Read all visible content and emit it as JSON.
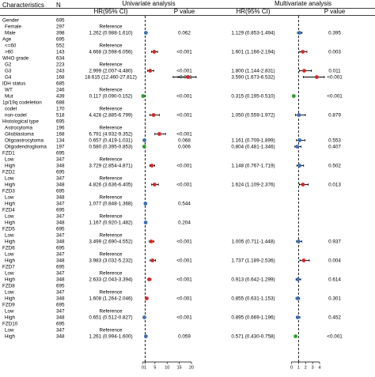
{
  "chart_data": [
    {
      "type": "forest",
      "title": "Univariate analysis",
      "xlabel": "",
      "xlim": [
        0,
        20
      ],
      "reference_line": 1,
      "ticks": [
        "0",
        "1",
        "5",
        "10",
        "15",
        "20"
      ],
      "tick_values": [
        0,
        1,
        5,
        10,
        15,
        20
      ],
      "points": [
        {
          "row": 2,
          "hr": 1.262,
          "low": 0.988,
          "high": 1.61,
          "color": "#3c6fb4"
        },
        {
          "row": 5,
          "hr": 4.668,
          "low": 3.598,
          "high": 6.056,
          "color": "#d62728"
        },
        {
          "row": 8,
          "hr": 2.999,
          "low": 2.007,
          "high": 4.48,
          "color": "#d62728"
        },
        {
          "row": 9,
          "hr": 18.615,
          "low": 12.46,
          "high": 27.812,
          "color": "#d62728"
        },
        {
          "row": 12,
          "hr": 0.117,
          "low": 0.09,
          "high": 0.152,
          "color": "#2ca02c"
        },
        {
          "row": 15,
          "hr": 4.428,
          "low": 2.885,
          "high": 6.799,
          "color": "#d62728"
        },
        {
          "row": 18,
          "hr": 6.791,
          "low": 4.932,
          "high": 9.352,
          "color": "#d62728"
        },
        {
          "row": 19,
          "hr": 0.657,
          "low": 0.419,
          "high": 1.031,
          "color": "#3c6fb4"
        },
        {
          "row": 20,
          "hr": 0.58,
          "low": 0.395,
          "high": 0.853,
          "color": "#2ca02c"
        },
        {
          "row": 23,
          "hr": 3.729,
          "low": 2.854,
          "high": 4.871,
          "color": "#d62728"
        },
        {
          "row": 26,
          "hr": 4.826,
          "low": 3.636,
          "high": 6.405,
          "color": "#d62728"
        },
        {
          "row": 29,
          "hr": 1.077,
          "low": 0.848,
          "high": 1.368,
          "color": "#3c6fb4"
        },
        {
          "row": 32,
          "hr": 1.167,
          "low": 0.92,
          "high": 1.482,
          "color": "#3c6fb4"
        },
        {
          "row": 35,
          "hr": 3.499,
          "low": 2.69,
          "high": 4.552,
          "color": "#d62728"
        },
        {
          "row": 38,
          "hr": 3.983,
          "low": 3.032,
          "high": 5.232,
          "color": "#d62728"
        },
        {
          "row": 41,
          "hr": 2.633,
          "low": 2.043,
          "high": 3.394,
          "color": "#d62728"
        },
        {
          "row": 44,
          "hr": 1.608,
          "low": 1.264,
          "high": 2.046,
          "color": "#d62728"
        },
        {
          "row": 47,
          "hr": 0.651,
          "low": 0.512,
          "high": 0.827,
          "color": "#3c6fb4"
        },
        {
          "row": 50,
          "hr": 1.261,
          "low": 0.994,
          "high": 1.6,
          "color": "#3c6fb4"
        }
      ]
    },
    {
      "type": "forest",
      "title": "Multivariate analysis",
      "xlabel": "",
      "xlim": [
        0,
        4
      ],
      "reference_line": 1,
      "ticks": [
        "0",
        "1",
        "2",
        "3",
        "4"
      ],
      "tick_values": [
        0,
        1,
        2,
        3,
        4
      ],
      "points": [
        {
          "row": 2,
          "hr": 1.129,
          "low": 0.853,
          "high": 1.494,
          "color": "#3c6fb4"
        },
        {
          "row": 5,
          "hr": 1.601,
          "low": 1.166,
          "high": 2.194,
          "color": "#d62728"
        },
        {
          "row": 8,
          "hr": 1.8,
          "low": 1.144,
          "high": 2.831,
          "color": "#d62728"
        },
        {
          "row": 9,
          "hr": 3.59,
          "low": 1.673,
          "high": 6.532,
          "color": "#d62728"
        },
        {
          "row": 12,
          "hr": 0.315,
          "low": 0.195,
          "high": 0.51,
          "color": "#2ca02c"
        },
        {
          "row": 15,
          "hr": 1.05,
          "low": 0.559,
          "high": 1.972,
          "color": "#3c6fb4"
        },
        {
          "row": 19,
          "hr": 1.161,
          "low": 0.709,
          "high": 1.899,
          "color": "#3c6fb4"
        },
        {
          "row": 20,
          "hr": 0.804,
          "low": 0.481,
          "high": 1.346,
          "color": "#3c6fb4"
        },
        {
          "row": 23,
          "hr": 1.148,
          "low": 0.767,
          "high": 1.719,
          "color": "#3c6fb4"
        },
        {
          "row": 26,
          "hr": 1.624,
          "low": 1.109,
          "high": 2.376,
          "color": "#d62728"
        },
        {
          "row": 35,
          "hr": 1.005,
          "low": 0.711,
          "high": 1.448,
          "color": "#3c6fb4"
        },
        {
          "row": 38,
          "hr": 1.737,
          "low": 1.189,
          "high": 2.536,
          "color": "#d62728"
        },
        {
          "row": 41,
          "hr": 0.913,
          "low": 0.642,
          "high": 1.299,
          "color": "#3c6fb4"
        },
        {
          "row": 44,
          "hr": 0.855,
          "low": 0.631,
          "high": 1.153,
          "color": "#3c6fb4"
        },
        {
          "row": 47,
          "hr": 0.895,
          "low": 0.669,
          "high": 1.196,
          "color": "#3c6fb4"
        },
        {
          "row": 50,
          "hr": 0.571,
          "low": 0.43,
          "high": 0.758,
          "color": "#2ca02c"
        }
      ]
    }
  ],
  "headers": {
    "characteristics": "Characteristics",
    "n": "N",
    "uni_title": "Univariate analysis",
    "multi_title": "Multivariate analysis",
    "uni_hr": "HR(95% CI)",
    "uni_p": "P value",
    "multi_hr": "HR(95% CI)",
    "multi_p": "P value"
  },
  "rows": [
    {
      "label": "Gender",
      "n": "695",
      "indent": false,
      "uhr": "",
      "up": "",
      "mhr": "",
      "mp": ""
    },
    {
      "label": "Female",
      "n": "297",
      "indent": true,
      "uhr": "Reference",
      "up": "",
      "mhr": "",
      "mp": ""
    },
    {
      "label": "Male",
      "n": "398",
      "indent": true,
      "uhr": "1.262 (0.988-1.610)",
      "up": "0.062",
      "mhr": "1.129 (0.853-1.494)",
      "mp": "0.395"
    },
    {
      "label": "Age",
      "n": "695",
      "indent": false,
      "uhr": "",
      "up": "",
      "mhr": "",
      "mp": ""
    },
    {
      "label": "<=60",
      "n": "552",
      "indent": true,
      "uhr": "Reference",
      "up": "",
      "mhr": "",
      "mp": ""
    },
    {
      "label": ">60",
      "n": "143",
      "indent": true,
      "uhr": "4.668 (3.598-6.056)",
      "up": "<0.001",
      "mhr": "1.601 (1.166-2.194)",
      "mp": "0.003"
    },
    {
      "label": "WHO grade",
      "n": "634",
      "indent": false,
      "uhr": "",
      "up": "",
      "mhr": "",
      "mp": ""
    },
    {
      "label": "G2",
      "n": "223",
      "indent": true,
      "uhr": "Reference",
      "up": "",
      "mhr": "",
      "mp": ""
    },
    {
      "label": "G3",
      "n": "243",
      "indent": true,
      "uhr": "2.999 (2.007-4.480)",
      "up": "<0.001",
      "mhr": "1.800 (1.144-2.831)",
      "mp": "0.011"
    },
    {
      "label": "G4",
      "n": "168",
      "indent": true,
      "uhr": "18.615 (12.460-27.812)",
      "up": "<0.001",
      "mhr": "3.590 (1.673-6.532)",
      "mp": "<0.001"
    },
    {
      "label": "IDH status",
      "n": "685",
      "indent": false,
      "uhr": "",
      "up": "",
      "mhr": "",
      "mp": ""
    },
    {
      "label": "WT",
      "n": "246",
      "indent": true,
      "uhr": "Reference",
      "up": "",
      "mhr": "",
      "mp": ""
    },
    {
      "label": "Mut",
      "n": "439",
      "indent": true,
      "uhr": "0.117 (0.090-0.152)",
      "up": "<0.001",
      "mhr": "0.315 (0.195-0.510)",
      "mp": "<0.001"
    },
    {
      "label": "1p/19q codeletion",
      "n": "688",
      "indent": false,
      "uhr": "",
      "up": "",
      "mhr": "",
      "mp": ""
    },
    {
      "label": "codel",
      "n": "170",
      "indent": true,
      "uhr": "Reference",
      "up": "",
      "mhr": "",
      "mp": ""
    },
    {
      "label": "non-codel",
      "n": "518",
      "indent": true,
      "uhr": "4.428 (2.885-6.799)",
      "up": "<0.001",
      "mhr": "1.050 (0.559-1.972)",
      "mp": "0.879"
    },
    {
      "label": "Histological type",
      "n": "695",
      "indent": false,
      "uhr": "",
      "up": "",
      "mhr": "",
      "mp": ""
    },
    {
      "label": "Astrocytoma",
      "n": "196",
      "indent": true,
      "uhr": "Reference",
      "up": "",
      "mhr": "",
      "mp": ""
    },
    {
      "label": "Glioblastoma",
      "n": "168",
      "indent": true,
      "uhr": "6.791 (4.932-9.352)",
      "up": "<0.001",
      "mhr": "",
      "mp": ""
    },
    {
      "label": "Oligoastrocytoma",
      "n": "134",
      "indent": true,
      "uhr": "0.657 (0.419-1.031)",
      "up": "0.068",
      "mhr": "1.161 (0.709-1.899)",
      "mp": "0.553"
    },
    {
      "label": "Oligodendroglioma",
      "n": "197",
      "indent": true,
      "uhr": "0.580 (0.395-0.853)",
      "up": "0.006",
      "mhr": "0.804 (0.481-1.346)",
      "mp": "0.407"
    },
    {
      "label": "FZD1",
      "n": "695",
      "indent": false,
      "uhr": "",
      "up": "",
      "mhr": "",
      "mp": ""
    },
    {
      "label": "Low",
      "n": "347",
      "indent": true,
      "uhr": "Reference",
      "up": "",
      "mhr": "",
      "mp": ""
    },
    {
      "label": "High",
      "n": "348",
      "indent": true,
      "uhr": "3.729 (2.854-4.871)",
      "up": "<0.001",
      "mhr": "1.148 (0.767-1.719)",
      "mp": "0.502"
    },
    {
      "label": "FZD2",
      "n": "695",
      "indent": false,
      "uhr": "",
      "up": "",
      "mhr": "",
      "mp": ""
    },
    {
      "label": "Low",
      "n": "347",
      "indent": true,
      "uhr": "Reference",
      "up": "",
      "mhr": "",
      "mp": ""
    },
    {
      "label": "High",
      "n": "348",
      "indent": true,
      "uhr": "4.826 (3.636-6.405)",
      "up": "<0.001",
      "mhr": "1.624 (1.109-2.376)",
      "mp": "0.013"
    },
    {
      "label": "FZD3",
      "n": "695",
      "indent": false,
      "uhr": "",
      "up": "",
      "mhr": "",
      "mp": ""
    },
    {
      "label": "Low",
      "n": "348",
      "indent": true,
      "uhr": "Reference",
      "up": "",
      "mhr": "",
      "mp": ""
    },
    {
      "label": "High",
      "n": "347",
      "indent": true,
      "uhr": "1.077 (0.848-1.368)",
      "up": "0.544",
      "mhr": "",
      "mp": ""
    },
    {
      "label": "FZD4",
      "n": "695",
      "indent": false,
      "uhr": "",
      "up": "",
      "mhr": "",
      "mp": ""
    },
    {
      "label": "Low",
      "n": "347",
      "indent": true,
      "uhr": "Reference",
      "up": "",
      "mhr": "",
      "mp": ""
    },
    {
      "label": "High",
      "n": "348",
      "indent": true,
      "uhr": "1.167 (0.920-1.482)",
      "up": "0.204",
      "mhr": "",
      "mp": ""
    },
    {
      "label": "FZD5",
      "n": "695",
      "indent": false,
      "uhr": "",
      "up": "",
      "mhr": "",
      "mp": ""
    },
    {
      "label": "Low",
      "n": "347",
      "indent": true,
      "uhr": "Reference",
      "up": "",
      "mhr": "",
      "mp": ""
    },
    {
      "label": "High",
      "n": "348",
      "indent": true,
      "uhr": "3.499 (2.690-4.552)",
      "up": "<0.001",
      "mhr": "1.005 (0.711-1.448)",
      "mp": "0.937"
    },
    {
      "label": "FZD6",
      "n": "695",
      "indent": false,
      "uhr": "",
      "up": "",
      "mhr": "",
      "mp": ""
    },
    {
      "label": "Low",
      "n": "347",
      "indent": true,
      "uhr": "Reference",
      "up": "",
      "mhr": "",
      "mp": ""
    },
    {
      "label": "High",
      "n": "348",
      "indent": true,
      "uhr": "3.983 (3.032-5.232)",
      "up": "<0.001",
      "mhr": "1.737 (1.189-2.536)",
      "mp": "0.004"
    },
    {
      "label": "FZD7",
      "n": "695",
      "indent": false,
      "uhr": "",
      "up": "",
      "mhr": "",
      "mp": ""
    },
    {
      "label": "Low",
      "n": "347",
      "indent": true,
      "uhr": "Reference",
      "up": "",
      "mhr": "",
      "mp": ""
    },
    {
      "label": "High",
      "n": "348",
      "indent": true,
      "uhr": "2.633 (2.043-3.394)",
      "up": "<0.001",
      "mhr": "0.913 (0.642-1.299)",
      "mp": "0.614"
    },
    {
      "label": "FZD8",
      "n": "695",
      "indent": false,
      "uhr": "",
      "up": "",
      "mhr": "",
      "mp": ""
    },
    {
      "label": "Low",
      "n": "347",
      "indent": true,
      "uhr": "Reference",
      "up": "",
      "mhr": "",
      "mp": ""
    },
    {
      "label": "High",
      "n": "348",
      "indent": true,
      "uhr": "1.608 (1.264-2.046)",
      "up": "<0.001",
      "mhr": "0.855 (0.631-1.153)",
      "mp": "0.301"
    },
    {
      "label": "FZD9",
      "n": "695",
      "indent": false,
      "uhr": "",
      "up": "",
      "mhr": "",
      "mp": ""
    },
    {
      "label": "Low",
      "n": "347",
      "indent": true,
      "uhr": "Reference",
      "up": "",
      "mhr": "",
      "mp": ""
    },
    {
      "label": "High",
      "n": "348",
      "indent": true,
      "uhr": "0.651 (0.512-0.827)",
      "up": "<0.001",
      "mhr": "0.895 (0.669-1.196)",
      "mp": "0.452"
    },
    {
      "label": "FZD10",
      "n": "695",
      "indent": false,
      "uhr": "",
      "up": "",
      "mhr": "",
      "mp": ""
    },
    {
      "label": "Low",
      "n": "347",
      "indent": true,
      "uhr": "Reference",
      "up": "",
      "mhr": "",
      "mp": ""
    },
    {
      "label": "High",
      "n": "348",
      "indent": true,
      "uhr": "1.261 (0.994-1.600)",
      "up": "0.059",
      "mhr": "0.571 (0.430-0.758)",
      "mp": "<0.001"
    }
  ]
}
